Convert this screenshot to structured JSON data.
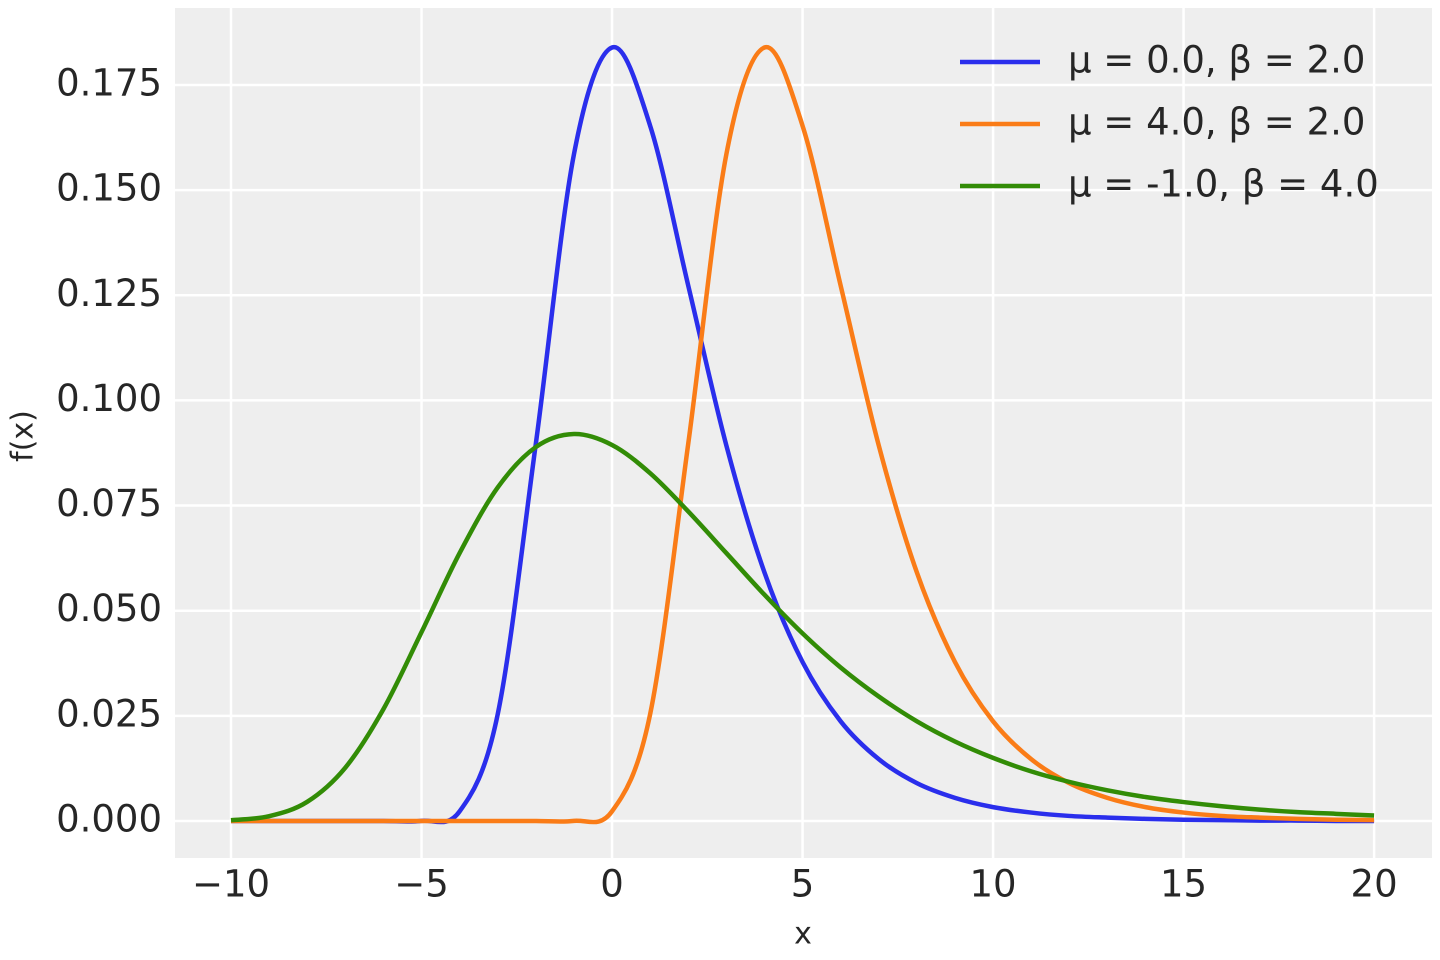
{
  "chart_data": {
    "type": "line",
    "x": [
      -10,
      -9,
      -8,
      -7,
      -6,
      -5,
      -4,
      -3,
      -2,
      -1,
      0,
      1,
      2,
      3,
      4,
      5,
      6,
      7,
      8,
      9,
      10,
      11,
      12,
      13,
      14,
      15,
      16,
      17,
      18,
      19,
      20
    ],
    "series": [
      {
        "name": "μ = 0.0, β = 2.0",
        "color": "#2a2eec",
        "values": [
          0,
          0,
          0,
          0,
          0,
          3e-05,
          0.0023,
          0.0254,
          0.0897,
          0.1585,
          0.1839,
          0.1653,
          0.1273,
          0.0893,
          0.0591,
          0.0378,
          0.0237,
          0.0147,
          0.009,
          0.0055,
          0.0033,
          0.002,
          0.0012,
          0.0008,
          0.0005,
          0.0003,
          0.0002,
          0.0001,
          0.0001,
          0,
          0
        ]
      },
      {
        "name": "μ = 4.0, β = 2.0",
        "color": "#fa7c17",
        "values": [
          0,
          0,
          0,
          0,
          0,
          0,
          0,
          0,
          0,
          3e-05,
          0.0023,
          0.0254,
          0.0897,
          0.1585,
          0.1839,
          0.1653,
          0.1273,
          0.0893,
          0.0591,
          0.0378,
          0.0237,
          0.0147,
          0.009,
          0.0055,
          0.0033,
          0.002,
          0.0012,
          0.0008,
          0.0005,
          0.0003,
          0.0002
        ]
      },
      {
        "name": "μ = -1.0, β = 4.0",
        "color": "#328c06",
        "values": [
          0.00018,
          0.00114,
          0.00456,
          0.01268,
          0.0266,
          0.0449,
          0.0637,
          0.0793,
          0.0889,
          0.092,
          0.0894,
          0.0827,
          0.0736,
          0.0637,
          0.0538,
          0.0446,
          0.0365,
          0.0296,
          0.0237,
          0.0189,
          0.015,
          0.0118,
          0.0093,
          0.0073,
          0.0057,
          0.0045,
          0.0035,
          0.0027,
          0.0021,
          0.0017,
          0.0013
        ]
      }
    ],
    "xlabel": "x",
    "ylabel": "f(x)",
    "xlim": [
      -11.47,
      21.52
    ],
    "ylim": [
      -0.0088,
      0.1933
    ],
    "xticks": [
      {
        "value": -10,
        "label": "−10"
      },
      {
        "value": -5,
        "label": "−5"
      },
      0,
      5,
      10,
      15,
      20
    ],
    "yticks": [
      {
        "value": 0,
        "label": "0.000"
      },
      0.025,
      {
        "value": 0.05,
        "label": "0.050"
      },
      0.075,
      {
        "value": 0.1,
        "label": "0.100"
      },
      0.125,
      {
        "value": 0.15,
        "label": "0.150"
      },
      0.175
    ],
    "grid": true,
    "legend": "upper right"
  }
}
